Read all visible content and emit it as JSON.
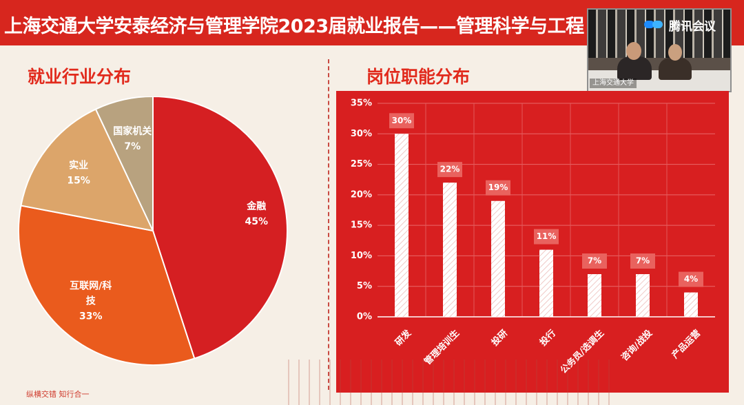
{
  "header": {
    "title": "上海交通大学安泰经济与管理学院2023届就业报告——管理科学与工程",
    "meeting_app": "腾讯会议",
    "video_caption": "上海交通大学"
  },
  "sections": {
    "left_title": "就业行业分布",
    "right_title": "岗位职能分布"
  },
  "footer": {
    "slogan": "纵横交错 知行合一"
  },
  "colors": {
    "brand_red": "#d7261e",
    "pie_finance": "#d51f22",
    "pie_internet": "#ea5b1d",
    "pie_industry": "#dca56a",
    "pie_government": "#b8a27f"
  },
  "chart_data": [
    {
      "type": "pie",
      "title": "就业行业分布",
      "slices": [
        {
          "label_lines": [
            "金融"
          ],
          "value": 45,
          "value_label": "45%"
        },
        {
          "label_lines": [
            "互联网/科",
            "技"
          ],
          "value": 33,
          "value_label": "33%"
        },
        {
          "label_lines": [
            "实业"
          ],
          "value": 15,
          "value_label": "15%"
        },
        {
          "label_lines": [
            "国家机关"
          ],
          "value": 7,
          "value_label": "7%"
        }
      ]
    },
    {
      "type": "bar",
      "title": "岗位职能分布",
      "categories": [
        "研发",
        "管理培训生",
        "投研",
        "投行",
        "公务员/选调生",
        "咨询/战投",
        "产品运营"
      ],
      "values": [
        30,
        22,
        19,
        11,
        7,
        7,
        4
      ],
      "value_labels": [
        "30%",
        "22%",
        "19%",
        "11%",
        "7%",
        "7%",
        "4%"
      ],
      "ylim": [
        0,
        35
      ],
      "yticks": [
        0,
        5,
        10,
        15,
        20,
        25,
        30,
        35
      ],
      "ytick_labels": [
        "0%",
        "5%",
        "10%",
        "15%",
        "20%",
        "25%",
        "30%",
        "35%"
      ],
      "grid": true
    }
  ]
}
